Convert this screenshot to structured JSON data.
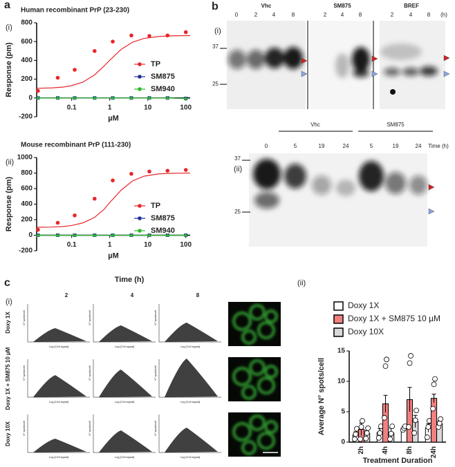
{
  "chart_data": [
    {
      "type": "line",
      "title": "Human recombinant PrP (23-230)",
      "panel": "a",
      "sub": "(i)",
      "xlabel": "µM",
      "ylabel": "Response (pm)",
      "xscale": "log",
      "xlim": [
        0.012,
        130
      ],
      "xticks": [
        0.1,
        1,
        10,
        100
      ],
      "ylim": [
        -200,
        800
      ],
      "yticks": [
        -200,
        0,
        200,
        400,
        600,
        800
      ],
      "x": [
        0.013,
        0.043,
        0.12,
        0.4,
        1.2,
        3.7,
        11,
        33,
        100
      ],
      "series": [
        {
          "name": "TP",
          "color": "#e8262a",
          "values": [
            75,
            215,
            300,
            500,
            600,
            665,
            660,
            665,
            700
          ]
        },
        {
          "name": "SM875",
          "color": "#1f2f9e",
          "values": [
            0,
            0,
            0,
            0,
            0,
            0,
            0,
            0,
            -5
          ]
        },
        {
          "name": "SM940",
          "color": "#2eb82e",
          "values": [
            0,
            0,
            0,
            0,
            0,
            0,
            0,
            0,
            -5
          ]
        }
      ],
      "fit": {
        "x": [
          0.012,
          0.03,
          0.06,
          0.1,
          0.2,
          0.4,
          0.7,
          1,
          2,
          4,
          8,
          20,
          50,
          130
        ],
        "values": [
          103,
          107,
          116,
          131,
          170,
          246,
          337,
          402,
          517,
          594,
          634,
          655,
          662,
          664
        ]
      }
    },
    {
      "type": "line",
      "title": "Mouse recombinant PrP (111-230)",
      "sub": "(ii)",
      "xlabel": "µM",
      "ylabel": "Response (pm)",
      "xscale": "log",
      "xlim": [
        0.012,
        130
      ],
      "xticks": [
        0.1,
        1,
        10,
        100
      ],
      "ylim": [
        -200,
        1000
      ],
      "yticks": [
        -200,
        0,
        200,
        400,
        600,
        800,
        1000
      ],
      "x": [
        0.013,
        0.043,
        0.12,
        0.4,
        1.2,
        3.7,
        11,
        33,
        100
      ],
      "series": [
        {
          "name": "TP",
          "color": "#e8262a",
          "values": [
            70,
            160,
            255,
            470,
            705,
            790,
            820,
            830,
            840
          ]
        },
        {
          "name": "SM875",
          "color": "#1f2f9e",
          "values": [
            0,
            0,
            0,
            0,
            0,
            0,
            0,
            0,
            0
          ]
        },
        {
          "name": "SM940",
          "color": "#2eb82e",
          "values": [
            0,
            0,
            0,
            0,
            0,
            0,
            0,
            0,
            0
          ]
        }
      ],
      "fit": {
        "x": [
          0.012,
          0.03,
          0.06,
          0.1,
          0.2,
          0.4,
          0.7,
          1,
          2,
          4,
          8,
          20,
          50,
          130
        ],
        "values": [
          102,
          105,
          112,
          125,
          160,
          230,
          330,
          420,
          580,
          700,
          760,
          790,
          798,
          800
        ]
      }
    },
    {
      "type": "bar",
      "sub": "(ii)",
      "ylabel": "Average N° spots/cell",
      "xlabel": "Treatment Duration",
      "ylim": [
        0,
        15
      ],
      "yticks": [
        0,
        5,
        10,
        15
      ],
      "categories": [
        "2h",
        "4h",
        "8h",
        "24h"
      ],
      "series": [
        {
          "name": "Doxy 1X",
          "color": "#ffffff",
          "values": [
            1.2,
            1.6,
            2.3,
            2.3
          ],
          "errors": [
            0.5,
            0.6,
            0.3,
            0.7
          ],
          "points": [
            [
              0.5,
              1.3,
              2.2
            ],
            [
              0.7,
              1.5,
              2.6
            ],
            [
              2.0,
              2.3,
              2.6
            ],
            [
              0.8,
              2.5,
              3.5
            ]
          ]
        },
        {
          "name": "Doxy 1X + SM875 10 µM",
          "color": "#f08080",
          "values": [
            2.1,
            6.3,
            7.0,
            7.2
          ],
          "errors": [
            1.0,
            1.4,
            2.0,
            0.7
          ],
          "points": [
            [
              0.5,
              2.5,
              3.5
            ],
            [
              4,
              12.5,
              13.6
            ],
            [
              2.5,
              13,
              14.2
            ],
            [
              5.5,
              9.5,
              10.4
            ]
          ]
        },
        {
          "name": "Doxy 10X",
          "color": "#d9d9d9",
          "values": [
            1.4,
            1.5,
            3.4,
            3.0
          ],
          "errors": [
            0.5,
            0.8,
            1.0,
            0.5
          ],
          "points": [
            [
              0.6,
              1.5,
              2.3
            ],
            [
              0.5,
              1.4,
              2.6
            ],
            [
              1.5,
              3.6,
              5.2
            ],
            [
              2.5,
              3.1,
              3.8
            ]
          ]
        }
      ]
    }
  ],
  "panel_b": {
    "label": "b",
    "sub1": "(i)",
    "groups1": [
      "Vhc",
      "SM875",
      "BREF"
    ],
    "lanes1": [
      [
        "0",
        "2",
        "4",
        "8"
      ],
      [
        "2",
        "4",
        "8"
      ],
      [
        "2",
        "4",
        "8"
      ]
    ],
    "unit1": "(h)",
    "mw": [
      "37",
      "25"
    ],
    "sub2": "(ii)",
    "groups2": [
      "Vhc",
      "SM875"
    ],
    "lanes2": [
      "0",
      "5",
      "19",
      "24",
      "5",
      "19",
      "24"
    ],
    "unit2": "Time (h)"
  },
  "panel_c": {
    "label": "c",
    "sub": "(i)",
    "time": "Time (h)",
    "columns": [
      "2",
      "4",
      "8"
    ],
    "rows": [
      "Doxy 1X",
      "Doxy 1X + SM875 10 µM",
      "Doxy 10X"
    ],
    "yaxis": "N° spots/cell",
    "xaxis": "Log [Cell signal]"
  }
}
